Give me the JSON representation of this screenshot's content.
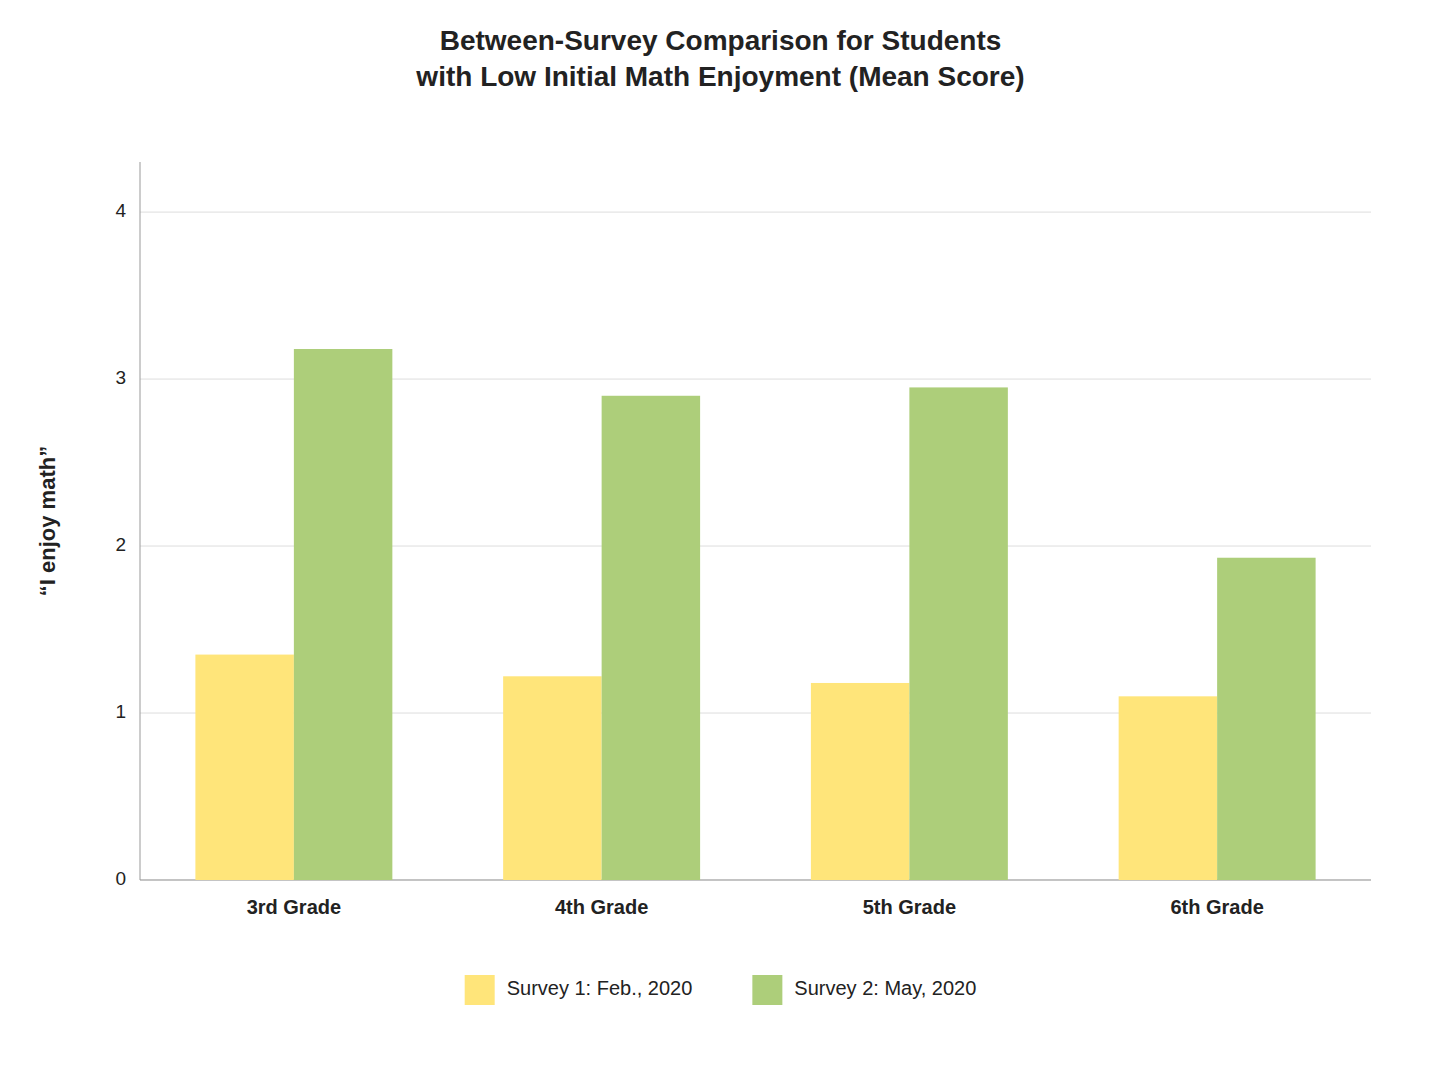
{
  "chart_data": {
    "type": "bar",
    "title": "Between-Survey Comparison for Students\nwith Low Initial Math Enjoyment (Mean Score)",
    "categories": [
      "3rd Grade",
      "4th Grade",
      "5th Grade",
      "6th Grade"
    ],
    "series": [
      {
        "name": "Survey 1: Feb., 2020",
        "color": "#FFE57A",
        "values": [
          1.35,
          1.22,
          1.18,
          1.1
        ]
      },
      {
        "name": "Survey 2: May, 2020",
        "color": "#ADCE7A",
        "values": [
          3.18,
          2.9,
          2.95,
          1.93
        ]
      }
    ],
    "ylabel": "“I enjoy math”",
    "ylim": [
      0,
      4.3
    ],
    "yticks": [
      0,
      1,
      2,
      3,
      4
    ],
    "grid": true,
    "legend": "bottom"
  }
}
